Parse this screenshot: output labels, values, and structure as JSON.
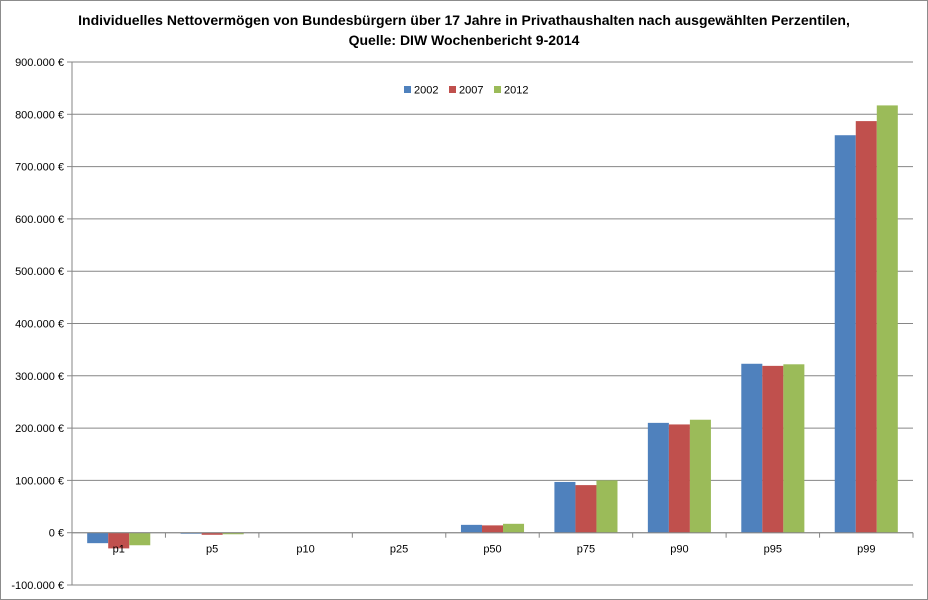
{
  "chart_data": {
    "type": "bar",
    "title": "Individuelles Nettovermögen von Bundesbürgern über 17 Jahre in Privathaushalten nach ausgewählten Perzentilen,",
    "subtitle": "Quelle: DIW Wochenbericht 9-2014",
    "xlabel": "",
    "ylabel": "",
    "categories": [
      "p1",
      "p5",
      "p10",
      "p25",
      "p50",
      "p75",
      "p90",
      "p95",
      "p99"
    ],
    "series": [
      {
        "name": "2002",
        "color": "#4f81bd",
        "values": [
          -20000,
          -2000,
          0,
          0,
          15000,
          97000,
          210000,
          323000,
          760000
        ]
      },
      {
        "name": "2007",
        "color": "#c0504d",
        "values": [
          -30000,
          -4000,
          0,
          0,
          14000,
          91000,
          207000,
          319000,
          787000
        ]
      },
      {
        "name": "2012",
        "color": "#9bbb59",
        "values": [
          -24000,
          -3000,
          0,
          0,
          17000,
          100000,
          216000,
          322000,
          817000
        ]
      }
    ],
    "ylim": [
      -100000,
      900000
    ],
    "y_ticks": [
      -100000,
      0,
      100000,
      200000,
      300000,
      400000,
      500000,
      600000,
      700000,
      800000,
      900000
    ],
    "y_tick_labels": [
      "-100.000 €",
      "0 €",
      "100.000 €",
      "200.000 €",
      "300.000 €",
      "400.000 €",
      "500.000 €",
      "600.000 €",
      "700.000 €",
      "800.000 €",
      "900.000 €"
    ],
    "grid": true,
    "legend_position": "top-center"
  }
}
